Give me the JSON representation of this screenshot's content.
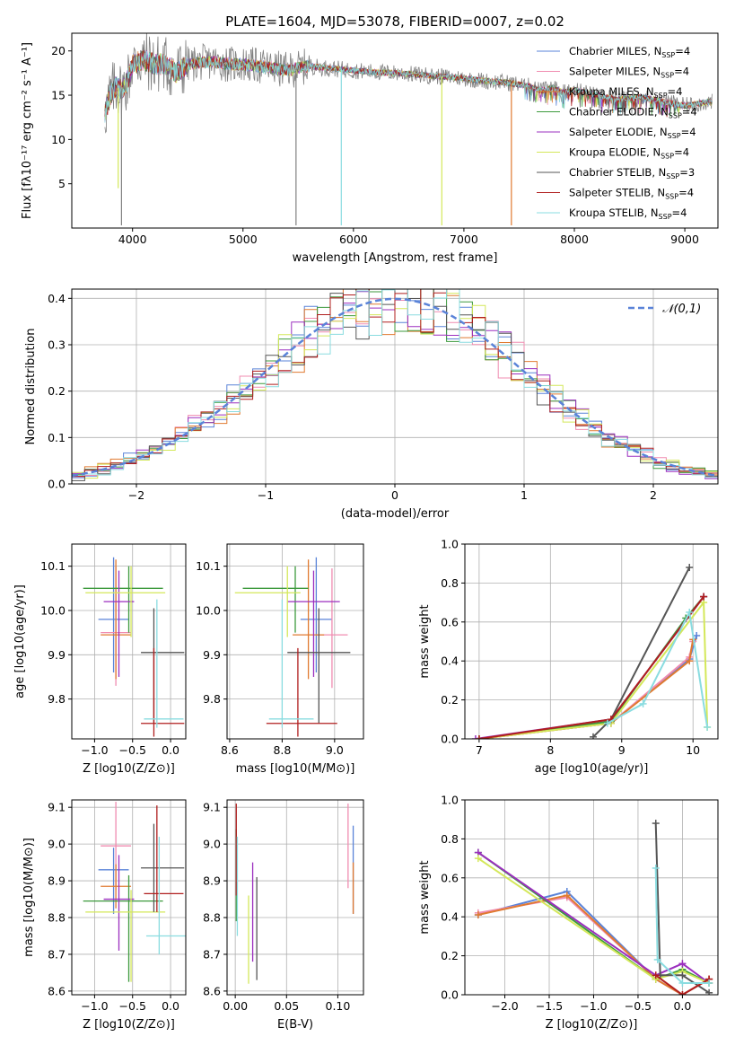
{
  "page": {
    "title": "PLATE=1604, MJD=53078, FIBERID=0007, z=0.02"
  },
  "colors": {
    "Chabrier MILES": "#5a83d8",
    "Salpeter MILES": "#f08cb0",
    "Kroupa MILES": "#e07a30",
    "Chabrier ELODIE": "#3d9a3d",
    "Salpeter ELODIE": "#9b2fbf",
    "Kroupa ELODIE": "#d4e85a",
    "Chabrier STELIB": "#555555",
    "Salpeter STELIB": "#b01e1e",
    "Kroupa STELIB": "#8adce0",
    "data": "#808080",
    "normal_curve": "#5a83d8"
  },
  "chart_data": [
    {
      "type": "line",
      "id": "spectrum",
      "title": "PLATE=1604, MJD=53078, FIBERID=0007, z=0.02",
      "xlabel": "wavelength [Angstrom, rest frame]",
      "ylabel": "Flux [fλ10⁻¹⁷ erg cm⁻² s⁻¹ A⁻¹]",
      "xlim": [
        3450,
        9300
      ],
      "ylim": [
        0,
        22
      ],
      "xticks": [
        "4000",
        "5000",
        "6000",
        "7000",
        "8000",
        "9000"
      ],
      "yticks": [
        "5",
        "10",
        "15",
        "20"
      ],
      "legend_position": "top-right",
      "legend": [
        "Chabrier MILES, N_SSP=4",
        "Salpeter MILES, N_SSP=4",
        "Kroupa MILES, N_SSP=4",
        "Chabrier ELODIE, N_SSP=4",
        "Salpeter ELODIE, N_SSP=4",
        "Kroupa ELODIE, N_SSP=4",
        "Chabrier STELIB, N_SSP=3",
        "Salpeter STELIB, N_SSP=4",
        "Kroupa STELIB, N_SSP=4"
      ],
      "continuum": {
        "x": [
          3750,
          3800,
          3850,
          3900,
          3950,
          4000,
          4100,
          4200,
          4300,
          4400,
          4500,
          4700,
          4900,
          5000,
          5200,
          5400,
          5600,
          5800,
          6000,
          6200,
          6400,
          6600,
          6800,
          7000,
          7200,
          7400,
          7600,
          7700,
          7800,
          7900,
          8000,
          8200,
          8400,
          8600,
          8800,
          9000,
          9200
        ],
        "y": [
          13,
          15,
          16,
          15.5,
          16.5,
          18.5,
          19,
          18.5,
          18.5,
          17.5,
          18.5,
          18.8,
          18.5,
          18.5,
          18.2,
          17.8,
          18.3,
          18,
          17.8,
          17.6,
          17.5,
          17.3,
          17.1,
          16.9,
          16.6,
          16.4,
          16,
          15.5,
          15.8,
          15.3,
          15.6,
          15,
          14.5,
          14.8,
          14.3,
          13.8,
          14.2
        ]
      },
      "model_dropouts": [
        {
          "x": 3870,
          "to": 4.5,
          "series": "Kroupa ELODIE"
        },
        {
          "x": 3900,
          "to": 0.3,
          "series": "data"
        },
        {
          "x": 5480,
          "to": 0.3,
          "series": "data"
        },
        {
          "x": 5890,
          "to": 0.3,
          "series": "Kroupa STELIB"
        },
        {
          "x": 6800,
          "to": 0.3,
          "series": "Kroupa ELODIE"
        },
        {
          "x": 7430,
          "to": 0.3,
          "series": "Kroupa MILES"
        }
      ]
    },
    {
      "type": "histogram",
      "id": "residuals",
      "xlabel": "(data-model)/error",
      "ylabel": "Normed distribution",
      "xlim": [
        -2.5,
        2.5
      ],
      "ylim": [
        0,
        0.42
      ],
      "xticks": [
        "−2",
        "−1",
        "0",
        "1",
        "2"
      ],
      "yticks": [
        "0.0",
        "0.1",
        "0.2",
        "0.3",
        "0.4"
      ],
      "bin_width": 0.1,
      "legend": [
        "𝒩(0,1)"
      ],
      "legend_position": "top-right",
      "normal_curve": {
        "mean": 0,
        "sigma": 1
      }
    },
    {
      "type": "scatter",
      "id": "age-vs-Z",
      "xlabel": "Z [log10(Z/Z⊙)]",
      "ylabel": "age  [log10(age/yr)]",
      "xlim": [
        -1.3,
        0.2
      ],
      "ylim": [
        9.71,
        10.15
      ],
      "xticks": [
        "−1.0",
        "−0.5",
        "0.0"
      ],
      "yticks": [
        "9.8",
        "9.9",
        "10.0",
        "10.1"
      ],
      "points": [
        {
          "series": "Chabrier MILES",
          "x": -0.75,
          "y": 9.98,
          "xerr": [
            0.2,
            0.2
          ],
          "yerr": [
            0.12,
            0.14
          ]
        },
        {
          "series": "Salpeter MILES",
          "x": -0.72,
          "y": 9.95,
          "xerr": [
            0.2,
            0.2
          ],
          "yerr": [
            0.12,
            0.15
          ]
        },
        {
          "series": "Kroupa MILES",
          "x": -0.72,
          "y": 9.945,
          "xerr": [
            0.2,
            0.2
          ],
          "yerr": [
            0.1,
            0.17
          ]
        },
        {
          "series": "Chabrier ELODIE",
          "x": -0.55,
          "y": 10.05,
          "xerr": [
            0.6,
            0.45
          ],
          "yerr": [
            0.1,
            0.05
          ]
        },
        {
          "series": "Salpeter ELODIE",
          "x": -0.68,
          "y": 10.02,
          "xerr": [
            0.2,
            0.2
          ],
          "yerr": [
            0.17,
            0.07
          ]
        },
        {
          "series": "Kroupa ELODIE",
          "x": -0.52,
          "y": 10.04,
          "xerr": [
            0.6,
            0.45
          ],
          "yerr": [
            0.1,
            0.06
          ]
        },
        {
          "series": "Chabrier STELIB",
          "x": -0.22,
          "y": 9.905,
          "xerr": [
            0.17,
            0.4
          ],
          "yerr": [
            0.16,
            0.1
          ]
        },
        {
          "series": "Salpeter STELIB",
          "x": -0.22,
          "y": 9.745,
          "xerr": [
            0.17,
            0.4
          ],
          "yerr": [
            0.03,
            0.17
          ]
        },
        {
          "series": "Kroupa STELIB",
          "x": -0.18,
          "y": 9.755,
          "xerr": [
            0.17,
            0.35
          ],
          "yerr": [
            0.02,
            0.27
          ]
        }
      ]
    },
    {
      "type": "scatter",
      "id": "age-vs-mass",
      "xlabel": "mass [log10(M/M⊙)]",
      "ylabel": "",
      "xlim": [
        8.59,
        9.11
      ],
      "ylim": [
        9.71,
        10.15
      ],
      "xticks": [
        "8.6",
        "8.8",
        "9.0"
      ],
      "yticks": [
        "9.8",
        "9.9",
        "10.0",
        "10.1"
      ],
      "points": [
        {
          "series": "Chabrier MILES",
          "x": 8.93,
          "y": 9.98,
          "xerr": [
            0.06,
            0.06
          ],
          "yerr": [
            0.12,
            0.14
          ]
        },
        {
          "series": "Salpeter MILES",
          "x": 8.99,
          "y": 9.945,
          "xerr": [
            0.06,
            0.06
          ],
          "yerr": [
            0.12,
            0.15
          ]
        },
        {
          "series": "Kroupa MILES",
          "x": 8.9,
          "y": 9.945,
          "xerr": [
            0.06,
            0.06
          ],
          "yerr": [
            0.1,
            0.17
          ]
        },
        {
          "series": "Chabrier ELODIE",
          "x": 8.85,
          "y": 10.05,
          "xerr": [
            0.2,
            0.05
          ],
          "yerr": [
            0.1,
            0.05
          ]
        },
        {
          "series": "Salpeter ELODIE",
          "x": 8.92,
          "y": 10.02,
          "xerr": [
            0.1,
            0.1
          ],
          "yerr": [
            0.17,
            0.07
          ]
        },
        {
          "series": "Kroupa ELODIE",
          "x": 8.82,
          "y": 10.04,
          "xerr": [
            0.2,
            0.05
          ],
          "yerr": [
            0.1,
            0.06
          ]
        },
        {
          "series": "Chabrier STELIB",
          "x": 8.94,
          "y": 9.905,
          "xerr": [
            0.12,
            0.12
          ],
          "yerr": [
            0.16,
            0.1
          ]
        },
        {
          "series": "Salpeter STELIB",
          "x": 8.86,
          "y": 9.745,
          "xerr": [
            0.12,
            0.15
          ],
          "yerr": [
            0.03,
            0.17
          ]
        },
        {
          "series": "Kroupa STELIB",
          "x": 8.8,
          "y": 9.755,
          "xerr": [
            0.05,
            0.12
          ],
          "yerr": [
            0.02,
            0.27
          ]
        }
      ]
    },
    {
      "type": "line",
      "id": "weight-vs-age",
      "xlabel": "age  [log10(age/yr)]",
      "ylabel": "mass weight",
      "xlim": [
        6.8,
        10.35
      ],
      "ylim": [
        0,
        1
      ],
      "xticks": [
        "7",
        "8",
        "9",
        "10"
      ],
      "yticks": [
        "0.0",
        "0.2",
        "0.4",
        "0.6",
        "0.8",
        "1.0"
      ],
      "series": [
        {
          "name": "Chabrier MILES",
          "x": [
            7.0,
            8.85,
            9.95,
            10.05
          ],
          "y": [
            0.0,
            0.08,
            0.41,
            0.53
          ]
        },
        {
          "name": "Salpeter MILES",
          "x": [
            7.0,
            8.85,
            9.95,
            10.0
          ],
          "y": [
            0.0,
            0.08,
            0.42,
            0.5
          ]
        },
        {
          "name": "Kroupa MILES",
          "x": [
            7.0,
            8.85,
            9.95,
            10.0
          ],
          "y": [
            0.0,
            0.08,
            0.4,
            0.51
          ]
        },
        {
          "name": "Chabrier ELODIE",
          "x": [
            7.0,
            8.85,
            9.9,
            10.15
          ],
          "y": [
            0.0,
            0.09,
            0.62,
            0.73
          ]
        },
        {
          "name": "Salpeter ELODIE",
          "x": [
            6.95,
            8.85,
            10.15
          ],
          "y": [
            0.0,
            0.1,
            0.73
          ]
        },
        {
          "name": "Kroupa ELODIE",
          "x": [
            7.0,
            8.85,
            10.15,
            10.2
          ],
          "y": [
            0.0,
            0.08,
            0.7,
            0.06
          ]
        },
        {
          "name": "Chabrier STELIB",
          "x": [
            8.6,
            8.85,
            9.95
          ],
          "y": [
            0.01,
            0.1,
            0.88
          ]
        },
        {
          "name": "Salpeter STELIB",
          "x": [
            7.0,
            8.85,
            10.15
          ],
          "y": [
            0.0,
            0.1,
            0.73
          ]
        },
        {
          "name": "Kroupa STELIB",
          "x": [
            8.8,
            9.3,
            9.95,
            10.2
          ],
          "y": [
            0.08,
            0.18,
            0.65,
            0.06
          ]
        }
      ]
    },
    {
      "type": "scatter",
      "id": "mass-vs-Z",
      "xlabel": "Z [log10(Z/Z⊙)]",
      "ylabel": "mass [log10(M/M⊙)]",
      "xlim": [
        -1.3,
        0.2
      ],
      "ylim": [
        8.59,
        9.12
      ],
      "xticks": [
        "−1.0",
        "−0.5",
        "0.0"
      ],
      "yticks": [
        "8.6",
        "8.7",
        "8.8",
        "8.9",
        "9.0",
        "9.1"
      ],
      "points": [
        {
          "series": "Chabrier MILES",
          "x": -0.75,
          "y": 8.93,
          "xerr": [
            0.2,
            0.2
          ],
          "yerr": [
            0.12,
            0.06
          ]
        },
        {
          "series": "Salpeter MILES",
          "x": -0.72,
          "y": 8.995,
          "xerr": [
            0.2,
            0.2
          ],
          "yerr": [
            0.12,
            0.12
          ]
        },
        {
          "series": "Kroupa MILES",
          "x": -0.72,
          "y": 8.885,
          "xerr": [
            0.2,
            0.2
          ],
          "yerr": [
            0.06,
            0.06
          ]
        },
        {
          "series": "Chabrier ELODIE",
          "x": -0.55,
          "y": 8.845,
          "xerr": [
            0.6,
            0.45
          ],
          "yerr": [
            0.22,
            0.07
          ]
        },
        {
          "series": "Salpeter ELODIE",
          "x": -0.68,
          "y": 8.85,
          "xerr": [
            0.2,
            0.2
          ],
          "yerr": [
            0.14,
            0.12
          ]
        },
        {
          "series": "Kroupa ELODIE",
          "x": -0.52,
          "y": 8.815,
          "xerr": [
            0.6,
            0.45
          ],
          "yerr": [
            0.19,
            0.06
          ]
        },
        {
          "series": "Chabrier STELIB",
          "x": -0.22,
          "y": 8.935,
          "xerr": [
            0.17,
            0.4
          ],
          "yerr": [
            0.12,
            0.12
          ]
        },
        {
          "series": "Salpeter STELIB",
          "x": -0.18,
          "y": 8.865,
          "xerr": [
            0.17,
            0.35
          ],
          "yerr": [
            0.05,
            0.24
          ]
        },
        {
          "series": "Kroupa STELIB",
          "x": -0.15,
          "y": 8.75,
          "xerr": [
            0.17,
            0.35
          ],
          "yerr": [
            0.05,
            0.27
          ]
        }
      ]
    },
    {
      "type": "scatter",
      "id": "mass-vs-EBV",
      "xlabel": "E(B-V)",
      "ylabel": "",
      "xlim": [
        -0.008,
        0.125
      ],
      "ylim": [
        8.59,
        9.12
      ],
      "xticks": [
        "0.00",
        "0.05",
        "0.10"
      ],
      "yticks": [
        "8.6",
        "8.7",
        "8.8",
        "8.9",
        "9.0",
        "9.1"
      ],
      "points": [
        {
          "series": "Chabrier MILES",
          "x": 0.115,
          "y": 8.93,
          "xerr": [
            0,
            0
          ],
          "yerr": [
            0.12,
            0.12
          ]
        },
        {
          "series": "Salpeter MILES",
          "x": 0.11,
          "y": 9.0,
          "xerr": [
            0,
            0
          ],
          "yerr": [
            0.12,
            0.11
          ]
        },
        {
          "series": "Kroupa MILES",
          "x": 0.115,
          "y": 8.9,
          "xerr": [
            0,
            0
          ],
          "yerr": [
            0.09,
            0.05
          ]
        },
        {
          "series": "Chabrier ELODIE",
          "x": 0.001,
          "y": 8.93,
          "xerr": [
            0,
            0
          ],
          "yerr": [
            0.14,
            0.11
          ]
        },
        {
          "series": "Salpeter ELODIE",
          "x": 0.017,
          "y": 8.85,
          "xerr": [
            0,
            0
          ],
          "yerr": [
            0.17,
            0.1
          ]
        },
        {
          "series": "Kroupa ELODIE",
          "x": 0.013,
          "y": 8.8,
          "xerr": [
            0,
            0
          ],
          "yerr": [
            0.18,
            0.06
          ]
        },
        {
          "series": "Chabrier STELIB",
          "x": 0.021,
          "y": 8.77,
          "xerr": [
            0,
            0
          ],
          "yerr": [
            0.14,
            0.14
          ]
        },
        {
          "series": "Salpeter STELIB",
          "x": 0.001,
          "y": 8.98,
          "xerr": [
            0,
            0
          ],
          "yerr": [
            0.12,
            0.13
          ]
        },
        {
          "series": "Kroupa STELIB",
          "x": 0.002,
          "y": 8.88,
          "xerr": [
            0,
            0
          ],
          "yerr": [
            0.13,
            0.14
          ]
        }
      ]
    },
    {
      "type": "line",
      "id": "weight-vs-Z",
      "xlabel": "Z [log10(Z/Z⊙)]",
      "ylabel": "mass weight",
      "xlim": [
        -2.45,
        0.4
      ],
      "ylim": [
        0,
        1
      ],
      "xticks": [
        "−2.0",
        "−1.5",
        "−1.0",
        "−0.5",
        "0.0"
      ],
      "yticks": [
        "0.0",
        "0.2",
        "0.4",
        "0.6",
        "0.8",
        "1.0"
      ],
      "series": [
        {
          "name": "Chabrier MILES",
          "x": [
            -2.3,
            -1.3,
            -0.3,
            0.0,
            0.3
          ],
          "y": [
            0.41,
            0.53,
            0.08,
            0.0,
            0.08
          ]
        },
        {
          "name": "Salpeter MILES",
          "x": [
            -2.3,
            -1.3,
            -0.3,
            0.0,
            0.3
          ],
          "y": [
            0.42,
            0.5,
            0.08,
            0.0,
            0.08
          ]
        },
        {
          "name": "Kroupa MILES",
          "x": [
            -2.3,
            -1.3,
            -0.3,
            0.0,
            0.3
          ],
          "y": [
            0.41,
            0.51,
            0.08,
            0.0,
            0.08
          ]
        },
        {
          "name": "Chabrier ELODIE",
          "x": [
            -2.3,
            -0.3,
            0.0,
            0.3
          ],
          "y": [
            0.73,
            0.08,
            0.13,
            0.06
          ]
        },
        {
          "name": "Salpeter ELODIE",
          "x": [
            -2.3,
            -0.3,
            0.0,
            0.3
          ],
          "y": [
            0.73,
            0.1,
            0.16,
            0.06
          ]
        },
        {
          "name": "Kroupa ELODIE",
          "x": [
            -2.3,
            -0.3,
            0.0,
            0.3
          ],
          "y": [
            0.7,
            0.08,
            0.12,
            0.06
          ]
        },
        {
          "name": "Chabrier STELIB",
          "x": [
            -0.3,
            -0.25,
            0.0,
            0.3
          ],
          "y": [
            0.88,
            0.1,
            0.1,
            0.01
          ]
        },
        {
          "name": "Salpeter STELIB",
          "x": [
            -0.3,
            0.0,
            0.3
          ],
          "y": [
            0.1,
            0.0,
            0.08
          ]
        },
        {
          "name": "Kroupa STELIB",
          "x": [
            -0.3,
            -0.28,
            0.0,
            0.3
          ],
          "y": [
            0.65,
            0.18,
            0.06,
            0.06
          ]
        }
      ]
    }
  ]
}
